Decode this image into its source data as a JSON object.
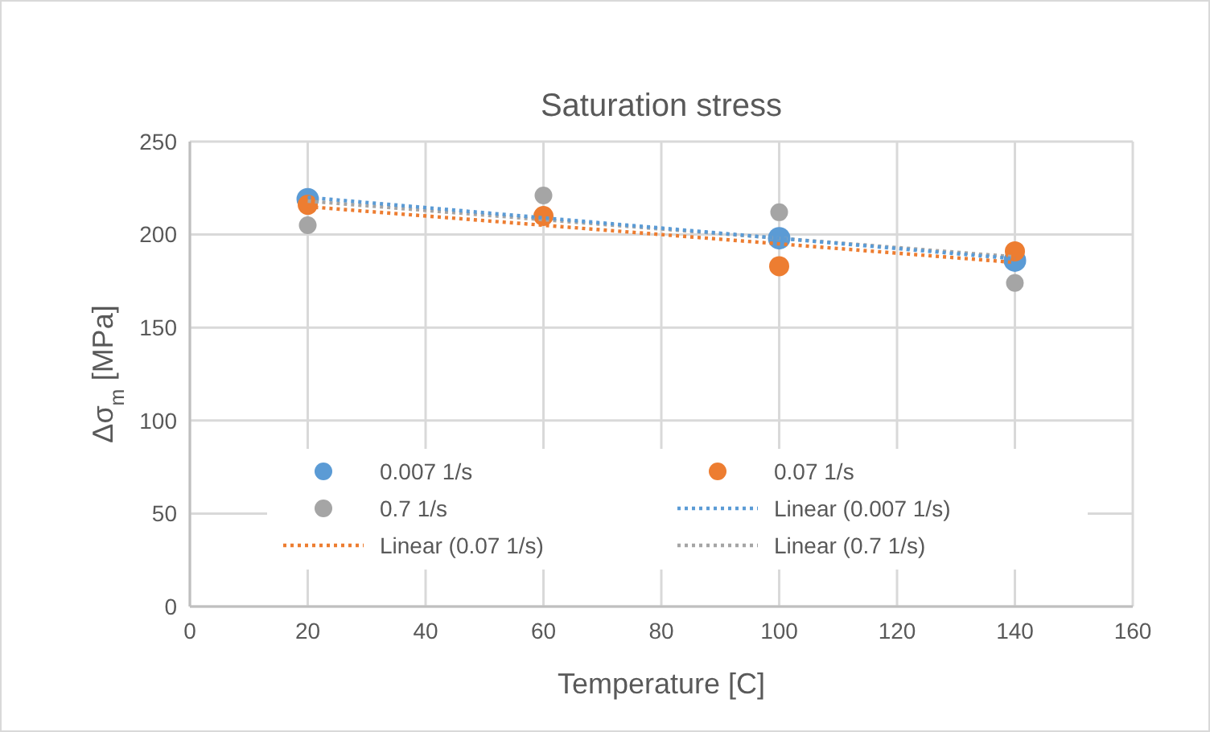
{
  "chart_data": {
    "type": "scatter",
    "title": "Saturation stress",
    "xlabel": "Temperature [C]",
    "ylabel": "Δσ$_{m}$ [MPa]",
    "x": [
      20,
      60,
      100,
      140
    ],
    "xlim": [
      0,
      160
    ],
    "xticks": [
      0,
      20,
      40,
      60,
      80,
      100,
      120,
      140,
      160
    ],
    "ylim": [
      0,
      250
    ],
    "yticks": [
      0,
      50,
      100,
      150,
      200,
      250
    ],
    "grid": true,
    "legend": "bottom",
    "marker": "circle",
    "series": [
      {
        "name": "0.007 1/s",
        "color": "#5b9bd5",
        "values": [
          219,
          null,
          198,
          186
        ]
      },
      {
        "name": "0.07 1/s",
        "color": "#ed7d31",
        "values": [
          216,
          210,
          183,
          191
        ]
      },
      {
        "name": "0.7 1/s",
        "color": "#a5a5a5",
        "values": [
          205,
          221,
          212,
          174
        ]
      },
      {
        "name": "Linear (0.007 1/s)",
        "type": "line",
        "color": "#5b9bd5",
        "values": [
          220,
          209,
          198,
          187
        ],
        "marker": "none",
        "line_style": "dotted"
      },
      {
        "name": "Linear (0.07 1/s)",
        "type": "line",
        "color": "#ed7d31",
        "values": [
          215,
          205,
          195,
          185
        ],
        "marker": "none",
        "line_style": "dotted"
      },
      {
        "name": "Linear (0.7 1/s)",
        "type": "line",
        "color": "#a5a5a5",
        "values": [
          218,
          208,
          198,
          188
        ],
        "marker": "none",
        "line_style": "dotted"
      }
    ]
  }
}
